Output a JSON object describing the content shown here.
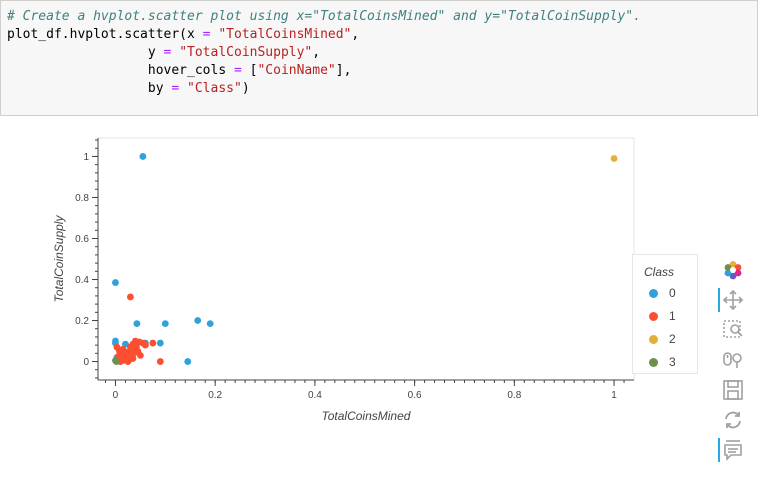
{
  "code": {
    "comment": "# Create a hvplot.scatter plot using x=\"TotalCoinsMined\" and y=\"TotalCoinSupply\".",
    "line2_prefix": "plot_df.hvplot.scatter(x ",
    "eq": "=",
    "line2_str": " \"TotalCoinsMined\"",
    "comma": ",",
    "indent_y": "                  y ",
    "line3_str": " \"TotalCoinSupply\"",
    "indent_hover": "                  hover_cols ",
    "line4_open": " [",
    "line4_str": "\"CoinName\"",
    "line4_close": "],",
    "indent_by": "                  by ",
    "line5_str": " \"Class\"",
    "line5_close": ")"
  },
  "chart_data": {
    "type": "scatter",
    "xlabel": "TotalCoinsMined",
    "ylabel": "TotalCoinSupply",
    "xlim": [
      -0.035,
      1.04
    ],
    "ylim": [
      -0.09,
      1.09
    ],
    "xticks": [
      0,
      0.2,
      0.4,
      0.6,
      0.8,
      1
    ],
    "xtick_labels": [
      "0",
      "0.2",
      "0.4",
      "0.6",
      "0.8",
      "1"
    ],
    "yticks": [
      0,
      0.2,
      0.4,
      0.6,
      0.8,
      1
    ],
    "ytick_labels": [
      "0",
      "0.2",
      "0.4",
      "0.6",
      "0.8",
      "1"
    ],
    "legend_title": "Class",
    "legend_position": "right",
    "series": [
      {
        "name": "0",
        "color": "#30a2da",
        "points": [
          [
            0.055,
            1.0
          ],
          [
            0.0,
            0.385
          ],
          [
            0.043,
            0.185
          ],
          [
            0.1,
            0.185
          ],
          [
            0.165,
            0.2
          ],
          [
            0.19,
            0.185
          ],
          [
            0.0,
            0.1
          ],
          [
            0.0,
            0.09
          ],
          [
            0.02,
            0.085
          ],
          [
            0.06,
            0.09
          ],
          [
            0.09,
            0.09
          ],
          [
            0.145,
            0.0
          ],
          [
            0.003,
            0.02
          ],
          [
            0.008,
            0.005
          ],
          [
            0.012,
            0.01
          ]
        ]
      },
      {
        "name": "1",
        "color": "#fc4f30",
        "points": [
          [
            0.03,
            0.315
          ],
          [
            0.003,
            0.07
          ],
          [
            0.008,
            0.05
          ],
          [
            0.012,
            0.04
          ],
          [
            0.015,
            0.06
          ],
          [
            0.018,
            0.02
          ],
          [
            0.02,
            0.01
          ],
          [
            0.022,
            0.045
          ],
          [
            0.025,
            0.03
          ],
          [
            0.028,
            0.01
          ],
          [
            0.03,
            0.07
          ],
          [
            0.032,
            0.055
          ],
          [
            0.035,
            0.085
          ],
          [
            0.037,
            0.04
          ],
          [
            0.04,
            0.1
          ],
          [
            0.042,
            0.07
          ],
          [
            0.045,
            0.05
          ],
          [
            0.048,
            0.095
          ],
          [
            0.05,
            0.03
          ],
          [
            0.055,
            0.09
          ],
          [
            0.06,
            0.08
          ],
          [
            0.075,
            0.09
          ],
          [
            0.09,
            0.0
          ],
          [
            0.01,
            0.0
          ],
          [
            0.015,
            0.005
          ],
          [
            0.025,
            0.0
          ],
          [
            0.006,
            0.025
          ],
          [
            0.035,
            0.015
          ]
        ]
      },
      {
        "name": "2",
        "color": "#e5ae38",
        "points": [
          [
            1.0,
            0.99
          ]
        ]
      },
      {
        "name": "3",
        "color": "#6d904f",
        "points": [
          [
            0.0,
            0.005
          ],
          [
            0.002,
            0.0
          ]
        ]
      }
    ]
  },
  "toolbar": {
    "logo": "bokeh-logo-icon",
    "tools": [
      "pan-icon",
      "box-zoom-icon",
      "wheel-zoom-icon",
      "save-icon",
      "reset-icon",
      "hover-icon"
    ]
  }
}
